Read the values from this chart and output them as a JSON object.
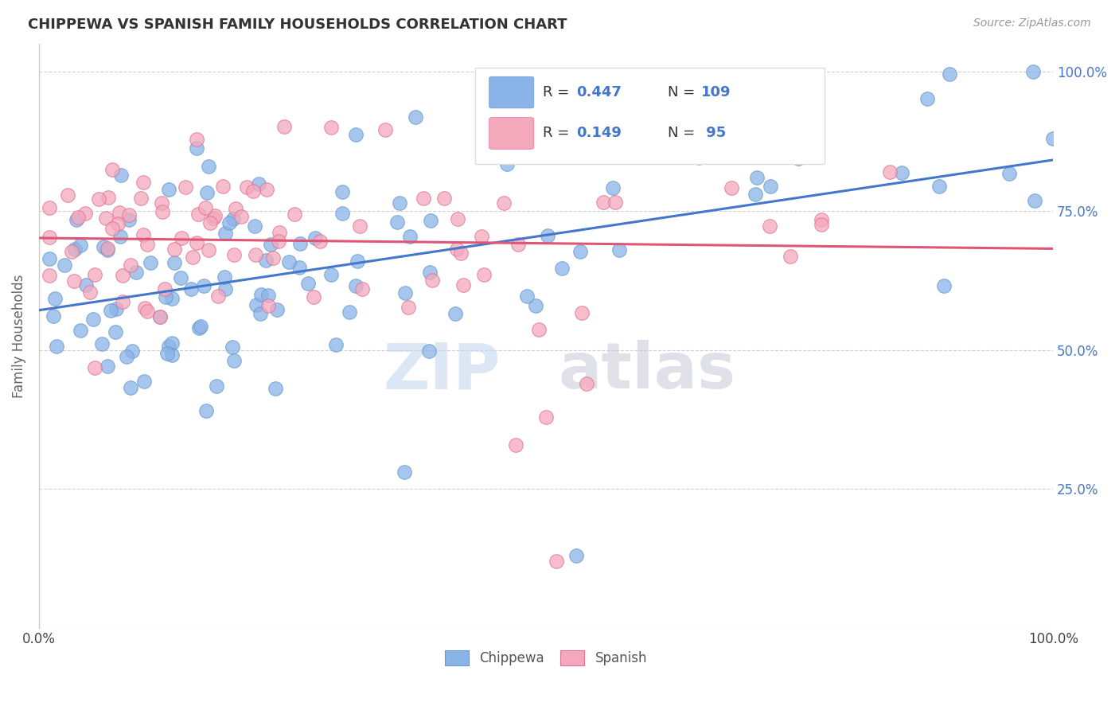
{
  "title": "CHIPPEWA VS SPANISH FAMILY HOUSEHOLDS CORRELATION CHART",
  "source": "Source: ZipAtlas.com",
  "ylabel": "Family Households",
  "xlim": [
    0.0,
    1.0
  ],
  "ylim": [
    0.0,
    1.05
  ],
  "ytick_values": [
    0.0,
    0.25,
    0.5,
    0.75,
    1.0
  ],
  "right_ytick_labels": [
    "",
    "25.0%",
    "50.0%",
    "75.0%",
    "100.0%"
  ],
  "xtick_values": [
    0.0,
    0.2,
    0.4,
    0.6,
    0.8,
    1.0
  ],
  "xtick_labels": [
    "0.0%",
    "",
    "",
    "",
    "",
    "100.0%"
  ],
  "chippewa_color": "#8ab4e8",
  "chippewa_edge_color": "#6699cc",
  "spanish_color": "#f4a8bc",
  "spanish_edge_color": "#e07090",
  "chippewa_line_color": "#4477cc",
  "spanish_line_color": "#e05575",
  "legend_R_chippewa": "0.447",
  "legend_N_chippewa": "109",
  "legend_R_spanish": "0.149",
  "legend_N_spanish": "95",
  "background_color": "#ffffff",
  "grid_color": "#d0d0d0",
  "watermark_zip_color": "#c5d8f0",
  "watermark_atlas_color": "#c8c8d8",
  "right_tick_color": "#4477cc",
  "chip_seed": 42,
  "span_seed": 77
}
